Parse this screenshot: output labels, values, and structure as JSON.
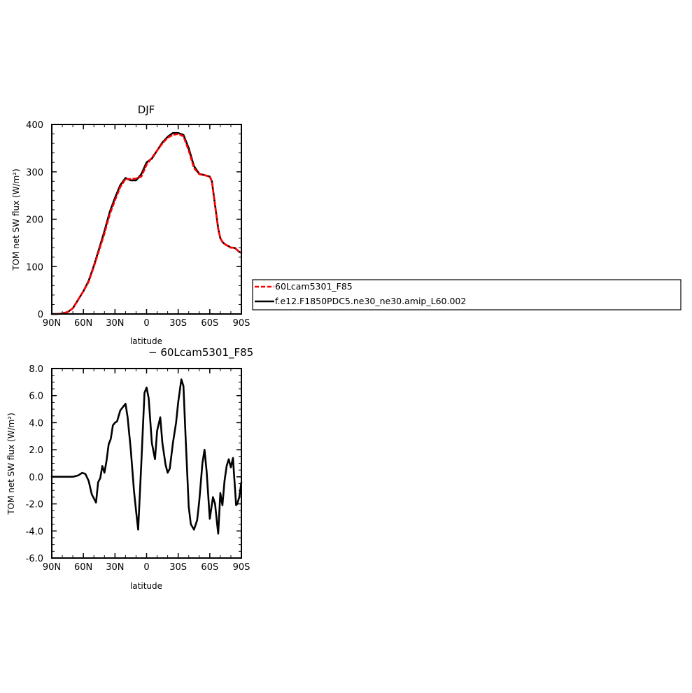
{
  "chart_data": [
    {
      "type": "line",
      "title": "DJF",
      "xlabel": "latitude",
      "ylabel": "TOM net SW flux (W/m²)",
      "xlim": [
        -90,
        90
      ],
      "ylim": [
        0,
        400
      ],
      "x_ticks": [
        "90N",
        "60N",
        "30N",
        "0",
        "30S",
        "60S",
        "90S"
      ],
      "y_ticks": [
        "0",
        "100",
        "200",
        "300",
        "400"
      ],
      "legend_position": "right",
      "series": [
        {
          "name": "60Lcam5301_F85",
          "color": "#ff0000",
          "style": "dashed",
          "x": [
            -90,
            -85,
            -80,
            -75,
            -70,
            -65,
            -60,
            -55,
            -50,
            -45,
            -40,
            -35,
            -30,
            -25,
            -20,
            -15,
            -10,
            -5,
            0,
            5,
            10,
            15,
            20,
            25,
            30,
            35,
            40,
            45,
            50,
            55,
            60,
            62,
            65,
            68,
            70,
            72,
            74,
            76,
            78,
            80,
            82,
            84,
            86,
            88,
            90
          ],
          "y": [
            0,
            0,
            1,
            4,
            12,
            30,
            48,
            68,
            100,
            135,
            170,
            210,
            240,
            268,
            285,
            285,
            286,
            290,
            315,
            330,
            345,
            360,
            372,
            378,
            380,
            375,
            345,
            308,
            295,
            293,
            290,
            280,
            230,
            180,
            160,
            152,
            148,
            145,
            143,
            140,
            140,
            139,
            135,
            131,
            129
          ]
        },
        {
          "name": "f.e12.F1850PDC5.ne30_ne30.amip_L60.002",
          "color": "#000000",
          "style": "solid",
          "x": [
            -90,
            -85,
            -80,
            -75,
            -70,
            -65,
            -60,
            -55,
            -50,
            -45,
            -40,
            -35,
            -30,
            -25,
            -20,
            -15,
            -10,
            -5,
            0,
            5,
            10,
            15,
            20,
            25,
            30,
            35,
            40,
            45,
            50,
            55,
            60,
            62,
            65,
            68,
            70,
            72,
            74,
            76,
            78,
            80,
            82,
            84,
            86,
            88,
            90
          ],
          "y": [
            0,
            0,
            1,
            4,
            12,
            30,
            48,
            70,
            102,
            138,
            175,
            215,
            245,
            272,
            287,
            282,
            282,
            295,
            320,
            328,
            345,
            362,
            374,
            382,
            382,
            378,
            350,
            312,
            296,
            293,
            290,
            280,
            230,
            180,
            160,
            152,
            148,
            145,
            143,
            140,
            140,
            139,
            135,
            131,
            129
          ]
        }
      ]
    },
    {
      "type": "line",
      "title": "− 60Lcam5301_F85",
      "xlabel": "latitude",
      "ylabel": "TOM net SW flux (W/m²)",
      "xlim": [
        -90,
        90
      ],
      "ylim": [
        -6,
        8
      ],
      "x_ticks": [
        "90N",
        "60N",
        "30N",
        "0",
        "30S",
        "60S",
        "90S"
      ],
      "y_ticks": [
        "-6.0",
        "-4.0",
        "-2.0",
        "0.0",
        "2.0",
        "4.0",
        "6.0",
        "8.0"
      ],
      "series": [
        {
          "color": "#000000",
          "style": "solid",
          "x": [
            -90,
            -80,
            -70,
            -65,
            -61,
            -58,
            -55,
            -52,
            -50,
            -48,
            -46,
            -44,
            -42,
            -40,
            -38,
            -36,
            -34,
            -32,
            -30,
            -28,
            -25,
            -22,
            -20,
            -18,
            -15,
            -12,
            -10,
            -8,
            -5,
            -2,
            0,
            2,
            5,
            8,
            10,
            13,
            15,
            18,
            20,
            22,
            25,
            28,
            30,
            33,
            35,
            37,
            40,
            42,
            45,
            48,
            50,
            53,
            55,
            57,
            60,
            63,
            65,
            67,
            68,
            70,
            72,
            74,
            76,
            78,
            80,
            82,
            83,
            85,
            86,
            88,
            90
          ],
          "y": [
            0,
            0,
            0,
            0.1,
            0.3,
            0.2,
            -0.3,
            -1.3,
            -1.6,
            -1.9,
            -0.4,
            -0.1,
            0.8,
            0.3,
            1.2,
            2.4,
            2.8,
            3.8,
            4.0,
            4.1,
            4.9,
            5.2,
            5.4,
            4.4,
            2.0,
            -1.0,
            -2.5,
            -3.9,
            1.0,
            6.2,
            6.6,
            5.8,
            2.5,
            1.3,
            3.4,
            4.4,
            2.5,
            0.9,
            0.3,
            0.6,
            2.5,
            4.0,
            5.5,
            7.2,
            6.7,
            3.0,
            -2.2,
            -3.5,
            -3.9,
            -3.2,
            -1.8,
            1.0,
            2.0,
            0.4,
            -3.1,
            -1.5,
            -2.0,
            -3.5,
            -4.2,
            -1.2,
            -2.1,
            -0.3,
            0.8,
            1.3,
            0.7,
            1.4,
            0.2,
            -2.1,
            -2.0,
            -1.5,
            -0.4
          ]
        }
      ]
    }
  ],
  "legend": {
    "items": [
      {
        "label": "60Lcam5301_F85",
        "color": "#ff0000",
        "style": "dashed"
      },
      {
        "label": "f.e12.F1850PDC5.ne30_ne30.amip_L60.002",
        "color": "#000000",
        "style": "solid"
      }
    ]
  }
}
